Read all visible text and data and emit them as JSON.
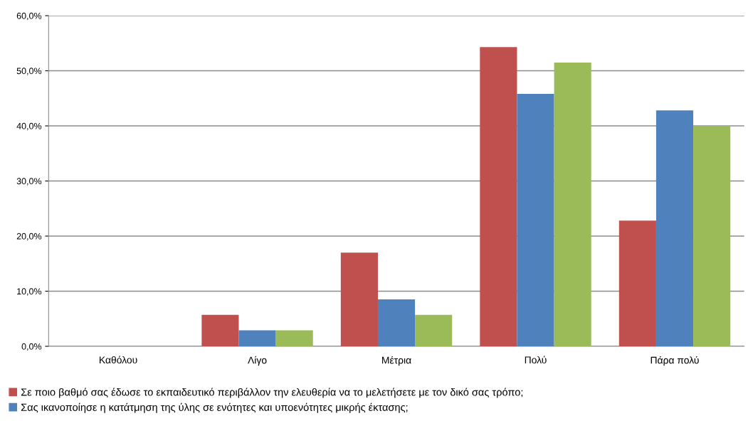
{
  "chart_data": {
    "type": "bar",
    "categories": [
      "Καθόλου",
      "Λίγο",
      "Μέτρια",
      "Πολύ",
      "Πάρα πολύ"
    ],
    "series": [
      {
        "name": "Σε ποιο βαθμό σας έδωσε το εκπαιδευτικό περιβάλλον την ελευθερία να το μελετήσετε με τον δικό σας τρόπο;",
        "color": "#c0504d",
        "values": [
          0,
          5.7,
          17.0,
          54.3,
          22.8
        ]
      },
      {
        "name": "Σας ικανοποίησε η κατάτμηση της ύλης σε ενότητες και υποενότητες μικρής έκτασης;",
        "color": "#4f81bd",
        "values": [
          0,
          2.9,
          8.5,
          45.8,
          42.8
        ]
      },
      {
        "color": "#9bbb59",
        "values": [
          0,
          2.9,
          5.7,
          51.5,
          40.0
        ]
      }
    ],
    "ylim": [
      0,
      60
    ],
    "yticks": [
      {
        "value": 0,
        "label": "0,0%"
      },
      {
        "value": 10,
        "label": "10,0%"
      },
      {
        "value": 20,
        "label": "20,0%"
      },
      {
        "value": 30,
        "label": "30,0%"
      },
      {
        "value": 40,
        "label": "40,0%"
      },
      {
        "value": 50,
        "label": "50,0%"
      },
      {
        "value": 60,
        "label": "60,0%"
      }
    ],
    "grid": "y",
    "legend": "bottom"
  }
}
